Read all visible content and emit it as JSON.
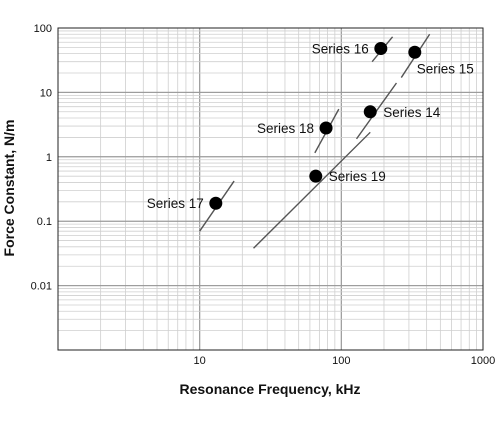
{
  "chart_data": {
    "type": "scatter",
    "xlabel": "Resonance Frequency, kHz",
    "ylabel": "Force Constant, N/m",
    "xscale": "log",
    "yscale": "log",
    "xlim": [
      1,
      1000
    ],
    "ylim": [
      0.001,
      100
    ],
    "x_tick_labels": [
      "10",
      "100",
      "1000"
    ],
    "x_tick_values": [
      10,
      100,
      1000
    ],
    "y_tick_labels": [
      "0.01",
      "0.1",
      "1",
      "10",
      "100"
    ],
    "y_tick_values": [
      0.01,
      0.1,
      1,
      10,
      100
    ],
    "grid": "major and minor (log)",
    "marker_color": "#000000",
    "line_color": "#555555",
    "series": [
      {
        "name": "Series 14",
        "point": {
          "x": 160,
          "y": 5.0
        },
        "range_line": {
          "x": [
            128,
            245
          ],
          "y": [
            1.9,
            14
          ]
        },
        "label_side": "right"
      },
      {
        "name": "Series 15",
        "point": {
          "x": 330,
          "y": 42
        },
        "range_line": {
          "x": [
            265,
            420
          ],
          "y": [
            17,
            80
          ]
        },
        "label_side": "right-below"
      },
      {
        "name": "Series 16",
        "point": {
          "x": 190,
          "y": 48
        },
        "range_line": {
          "x": [
            165,
            230
          ],
          "y": [
            30,
            73
          ]
        },
        "label_side": "left"
      },
      {
        "name": "Series 17",
        "point": {
          "x": 13,
          "y": 0.19
        },
        "range_line": {
          "x": [
            10,
            17.5
          ],
          "y": [
            0.07,
            0.42
          ]
        },
        "label_side": "left"
      },
      {
        "name": "Series 18",
        "point": {
          "x": 78,
          "y": 2.8
        },
        "range_line": {
          "x": [
            65,
            96
          ],
          "y": [
            1.15,
            5.5
          ]
        },
        "label_side": "left"
      },
      {
        "name": "Series 19",
        "point": {
          "x": 66,
          "y": 0.5
        },
        "range_line": {
          "x": [
            24,
            160
          ],
          "y": [
            0.038,
            2.4
          ]
        },
        "label_side": "right"
      }
    ]
  }
}
